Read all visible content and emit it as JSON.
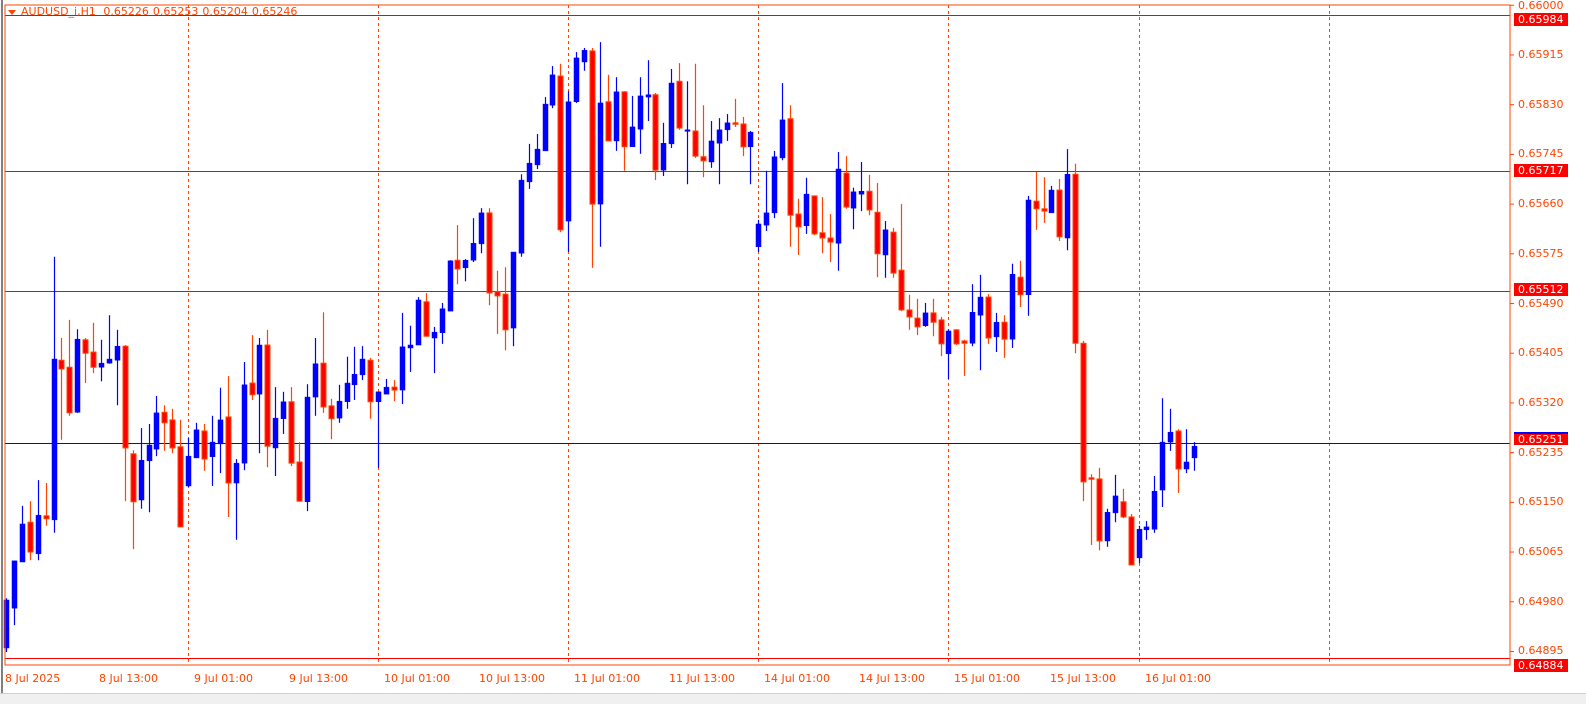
{
  "header": {
    "symbol": "AUDUSD_i,H1",
    "open": "0.65226",
    "high": "0.65253",
    "low": "0.65204",
    "close": "0.65246",
    "menu_icon": "triangle-down-icon"
  },
  "colors": {
    "bull": "#0000ff",
    "bear": "#ff0000",
    "bear_border": "#ff4500",
    "axis": "#ff4500",
    "level_line": "#ff0000",
    "bid_line": "#0000ff"
  },
  "chart_data": {
    "type": "candlestick",
    "title": "AUDUSD_i,H1",
    "ylim": [
      0.64884,
      0.66005
    ],
    "grid": "vertical dashed separators",
    "y_ticks": [
      "0.66000",
      "0.65915",
      "0.65830",
      "0.65745",
      "0.65660",
      "0.65575",
      "0.65490",
      "0.65405",
      "0.65320",
      "0.65235",
      "0.65150",
      "0.65065",
      "0.64980",
      "0.64895"
    ],
    "x_ticks": [
      "8 Jul 2025",
      "8 Jul 13:00",
      "9 Jul 01:00",
      "9 Jul 13:00",
      "10 Jul 01:00",
      "10 Jul 13:00",
      "11 Jul 01:00",
      "11 Jul 13:00",
      "14 Jul 01:00",
      "14 Jul 13:00",
      "15 Jul 01:00",
      "15 Jul 13:00",
      "16 Jul 01:00"
    ],
    "horizontal_levels": [
      {
        "price": "0.65984",
        "color": "#ff0000"
      },
      {
        "price": "0.65717",
        "color": "#ff0000"
      },
      {
        "price": "0.65512",
        "color": "#ff0000"
      },
      {
        "price": "0.64884",
        "color": "#ff0000"
      }
    ],
    "bid_line": {
      "price": "0.65251",
      "color": "#0000ff"
    },
    "ohlc_fields": [
      "open",
      "high",
      "low",
      "close"
    ],
    "candles": [
      [
        0.64901,
        0.64986,
        0.64894,
        0.64983
      ],
      [
        0.64969,
        0.6505,
        0.6494,
        0.6505
      ],
      [
        0.65048,
        0.65144,
        0.65048,
        0.65113
      ],
      [
        0.65116,
        0.65152,
        0.65051,
        0.65065
      ],
      [
        0.65062,
        0.65188,
        0.65051,
        0.65128
      ],
      [
        0.65127,
        0.65183,
        0.6511,
        0.65122
      ],
      [
        0.6512,
        0.6557,
        0.65098,
        0.65395
      ],
      [
        0.65393,
        0.65431,
        0.65257,
        0.65378
      ],
      [
        0.65381,
        0.65462,
        0.65298,
        0.65303
      ],
      [
        0.65304,
        0.65446,
        0.65303,
        0.65429
      ],
      [
        0.65428,
        0.65431,
        0.65354,
        0.65405
      ],
      [
        0.65407,
        0.65457,
        0.65371,
        0.65381
      ],
      [
        0.65381,
        0.65428,
        0.65357,
        0.65388
      ],
      [
        0.65388,
        0.6547,
        0.65387,
        0.65395
      ],
      [
        0.65393,
        0.65445,
        0.65316,
        0.65417
      ],
      [
        0.65417,
        0.65419,
        0.65152,
        0.65243
      ],
      [
        0.65233,
        0.65239,
        0.6507,
        0.65151
      ],
      [
        0.65154,
        0.65277,
        0.65139,
        0.65222
      ],
      [
        0.65221,
        0.65284,
        0.65133,
        0.65248
      ],
      [
        0.65241,
        0.65332,
        0.65229,
        0.65303
      ],
      [
        0.65304,
        0.65316,
        0.65238,
        0.65286
      ],
      [
        0.65291,
        0.6531,
        0.65234,
        0.65243
      ],
      [
        0.65245,
        0.65291,
        0.65108,
        0.65108
      ],
      [
        0.65178,
        0.6526,
        0.65176,
        0.65229
      ],
      [
        0.65226,
        0.65286,
        0.65226,
        0.65274
      ],
      [
        0.65272,
        0.65284,
        0.65204,
        0.65224
      ],
      [
        0.65228,
        0.65298,
        0.65178,
        0.65253
      ],
      [
        0.6525,
        0.65346,
        0.652,
        0.65291
      ],
      [
        0.65296,
        0.65366,
        0.65125,
        0.65183
      ],
      [
        0.65183,
        0.65224,
        0.65086,
        0.65217
      ],
      [
        0.65217,
        0.6539,
        0.65205,
        0.65351
      ],
      [
        0.65354,
        0.65436,
        0.65325,
        0.65334
      ],
      [
        0.65335,
        0.65431,
        0.65234,
        0.65419
      ],
      [
        0.65419,
        0.65445,
        0.6521,
        0.65246
      ],
      [
        0.65243,
        0.65347,
        0.65195,
        0.65294
      ],
      [
        0.65293,
        0.65339,
        0.65267,
        0.65322
      ],
      [
        0.65322,
        0.65347,
        0.65212,
        0.65217
      ],
      [
        0.65219,
        0.65253,
        0.65151,
        0.65152
      ],
      [
        0.65151,
        0.65352,
        0.65135,
        0.6533
      ],
      [
        0.6533,
        0.65431,
        0.65298,
        0.65387
      ],
      [
        0.65388,
        0.65475,
        0.65303,
        0.65313
      ],
      [
        0.65315,
        0.65327,
        0.65258,
        0.65293
      ],
      [
        0.65294,
        0.65351,
        0.65286,
        0.65323
      ],
      [
        0.65322,
        0.65399,
        0.6531,
        0.65354
      ],
      [
        0.65351,
        0.65416,
        0.65325,
        0.65369
      ],
      [
        0.65368,
        0.65417,
        0.65359,
        0.65395
      ],
      [
        0.65393,
        0.65397,
        0.65293,
        0.65322
      ],
      [
        0.65322,
        0.65339,
        0.65209,
        0.65339
      ],
      [
        0.65335,
        0.65361,
        0.65335,
        0.65347
      ],
      [
        0.65347,
        0.65359,
        0.65323,
        0.65342
      ],
      [
        0.65342,
        0.65474,
        0.65318,
        0.65416
      ],
      [
        0.65414,
        0.65452,
        0.65373,
        0.65419
      ],
      [
        0.65419,
        0.65501,
        0.65419,
        0.65496
      ],
      [
        0.65493,
        0.65508,
        0.65434,
        0.65434
      ],
      [
        0.65431,
        0.6545,
        0.65371,
        0.65441
      ],
      [
        0.6544,
        0.65491,
        0.65421,
        0.65481
      ],
      [
        0.65477,
        0.65564,
        0.65477,
        0.65563
      ],
      [
        0.65564,
        0.65624,
        0.65523,
        0.65549
      ],
      [
        0.65551,
        0.65566,
        0.65528,
        0.65564
      ],
      [
        0.65564,
        0.65636,
        0.65561,
        0.65593
      ],
      [
        0.65592,
        0.65653,
        0.65576,
        0.65645
      ],
      [
        0.65645,
        0.65653,
        0.65487,
        0.65508
      ],
      [
        0.6551,
        0.65546,
        0.65438,
        0.65503
      ],
      [
        0.65506,
        0.65552,
        0.6541,
        0.65445
      ],
      [
        0.65448,
        0.65578,
        0.65417,
        0.65578
      ],
      [
        0.65576,
        0.65711,
        0.6557,
        0.65701
      ],
      [
        0.65698,
        0.65763,
        0.65686,
        0.6573
      ],
      [
        0.65727,
        0.6578,
        0.6572,
        0.65754
      ],
      [
        0.65751,
        0.65843,
        0.65751,
        0.65831
      ],
      [
        0.65829,
        0.65896,
        0.65824,
        0.65881
      ],
      [
        0.65879,
        0.659,
        0.65612,
        0.65616
      ],
      [
        0.65631,
        0.65853,
        0.65578,
        0.65835
      ],
      [
        0.65835,
        0.6592,
        0.65833,
        0.6591
      ],
      [
        0.65903,
        0.65927,
        0.65888,
        0.65923
      ],
      [
        0.65922,
        0.65927,
        0.65551,
        0.6566
      ],
      [
        0.6566,
        0.65937,
        0.65587,
        0.65833
      ],
      [
        0.65835,
        0.65881,
        0.65768,
        0.65768
      ],
      [
        0.65768,
        0.65877,
        0.65751,
        0.65852
      ],
      [
        0.65852,
        0.65853,
        0.65717,
        0.65758
      ],
      [
        0.65758,
        0.65845,
        0.65758,
        0.65792
      ],
      [
        0.65788,
        0.65877,
        0.65746,
        0.65845
      ],
      [
        0.65843,
        0.65906,
        0.65802,
        0.65847
      ],
      [
        0.65847,
        0.6585,
        0.65701,
        0.65718
      ],
      [
        0.65718,
        0.65799,
        0.65708,
        0.65764
      ],
      [
        0.65763,
        0.65891,
        0.65756,
        0.65867
      ],
      [
        0.6587,
        0.65901,
        0.65787,
        0.6579
      ],
      [
        0.65785,
        0.6587,
        0.65694,
        0.65787
      ],
      [
        0.65785,
        0.659,
        0.65739,
        0.65742
      ],
      [
        0.65741,
        0.65829,
        0.65706,
        0.65734
      ],
      [
        0.65732,
        0.65802,
        0.65722,
        0.65768
      ],
      [
        0.65764,
        0.65807,
        0.65694,
        0.65787
      ],
      [
        0.65787,
        0.65814,
        0.65768,
        0.65799
      ],
      [
        0.65799,
        0.6584,
        0.65792,
        0.65797
      ],
      [
        0.65797,
        0.65809,
        0.65742,
        0.65758
      ],
      [
        0.65758,
        0.65785,
        0.65694,
        0.65783
      ],
      [
        0.65587,
        0.65633,
        0.65578,
        0.65626
      ],
      [
        0.65624,
        0.65717,
        0.65614,
        0.65645
      ],
      [
        0.65645,
        0.65751,
        0.65636,
        0.65741
      ],
      [
        0.65739,
        0.65867,
        0.65735,
        0.65804
      ],
      [
        0.65806,
        0.65829,
        0.65587,
        0.65641
      ],
      [
        0.65643,
        0.65669,
        0.65573,
        0.65621
      ],
      [
        0.65623,
        0.65705,
        0.65609,
        0.65677
      ],
      [
        0.65674,
        0.65674,
        0.65607,
        0.65609
      ],
      [
        0.65611,
        0.65672,
        0.65576,
        0.65602
      ],
      [
        0.65602,
        0.65643,
        0.65561,
        0.65595
      ],
      [
        0.65593,
        0.65749,
        0.65546,
        0.6572
      ],
      [
        0.65713,
        0.65742,
        0.65652,
        0.65655
      ],
      [
        0.65653,
        0.65688,
        0.65617,
        0.65681
      ],
      [
        0.65677,
        0.65732,
        0.65648,
        0.65682
      ],
      [
        0.65682,
        0.6571,
        0.65641,
        0.6565
      ],
      [
        0.65646,
        0.65696,
        0.65535,
        0.65575
      ],
      [
        0.65573,
        0.65631,
        0.65534,
        0.65616
      ],
      [
        0.65612,
        0.65619,
        0.65534,
        0.65542
      ],
      [
        0.65547,
        0.6566,
        0.65477,
        0.65479
      ],
      [
        0.65479,
        0.65505,
        0.65445,
        0.65467
      ],
      [
        0.65465,
        0.65498,
        0.65436,
        0.6545
      ],
      [
        0.65452,
        0.65491,
        0.6545,
        0.65474
      ],
      [
        0.65474,
        0.65498,
        0.65434,
        0.65458
      ],
      [
        0.65462,
        0.65467,
        0.654,
        0.65421
      ],
      [
        0.65404,
        0.65446,
        0.65361,
        0.65443
      ],
      [
        0.65445,
        0.65446,
        0.65419,
        0.65421
      ],
      [
        0.65426,
        0.65428,
        0.65366,
        0.65422
      ],
      [
        0.65422,
        0.65523,
        0.65417,
        0.65475
      ],
      [
        0.6547,
        0.65539,
        0.65376,
        0.65501
      ],
      [
        0.65501,
        0.65506,
        0.65421,
        0.65431
      ],
      [
        0.65433,
        0.65474,
        0.65407,
        0.65458
      ],
      [
        0.65458,
        0.6547,
        0.65397,
        0.65429
      ],
      [
        0.65429,
        0.65558,
        0.65414,
        0.6554
      ],
      [
        0.65535,
        0.65563,
        0.65484,
        0.65505
      ],
      [
        0.65505,
        0.65674,
        0.65469,
        0.65667
      ],
      [
        0.65665,
        0.65715,
        0.65616,
        0.65652
      ],
      [
        0.65652,
        0.65706,
        0.65628,
        0.65648
      ],
      [
        0.65645,
        0.65691,
        0.65645,
        0.65684
      ],
      [
        0.65684,
        0.65703,
        0.65597,
        0.65604
      ],
      [
        0.65602,
        0.65754,
        0.65581,
        0.65711
      ],
      [
        0.65711,
        0.65729,
        0.65405,
        0.65422
      ],
      [
        0.65422,
        0.65426,
        0.65152,
        0.65185
      ],
      [
        0.65192,
        0.65198,
        0.65077,
        0.6519
      ],
      [
        0.6519,
        0.65209,
        0.65068,
        0.65084
      ],
      [
        0.65084,
        0.65139,
        0.65074,
        0.65133
      ],
      [
        0.65132,
        0.65197,
        0.65116,
        0.65161
      ],
      [
        0.65151,
        0.65173,
        0.65123,
        0.65125
      ],
      [
        0.65125,
        0.6513,
        0.65043,
        0.65043
      ],
      [
        0.65055,
        0.6511,
        0.65046,
        0.65104
      ],
      [
        0.65103,
        0.65118,
        0.65086,
        0.65108
      ],
      [
        0.65104,
        0.65195,
        0.65098,
        0.65169
      ],
      [
        0.65171,
        0.65328,
        0.65142,
        0.65253
      ],
      [
        0.65253,
        0.6531,
        0.65238,
        0.6527
      ],
      [
        0.65272,
        0.65275,
        0.65166,
        0.65207
      ],
      [
        0.65207,
        0.65275,
        0.652,
        0.65219
      ],
      [
        0.65226,
        0.65253,
        0.65204,
        0.65246
      ]
    ]
  }
}
